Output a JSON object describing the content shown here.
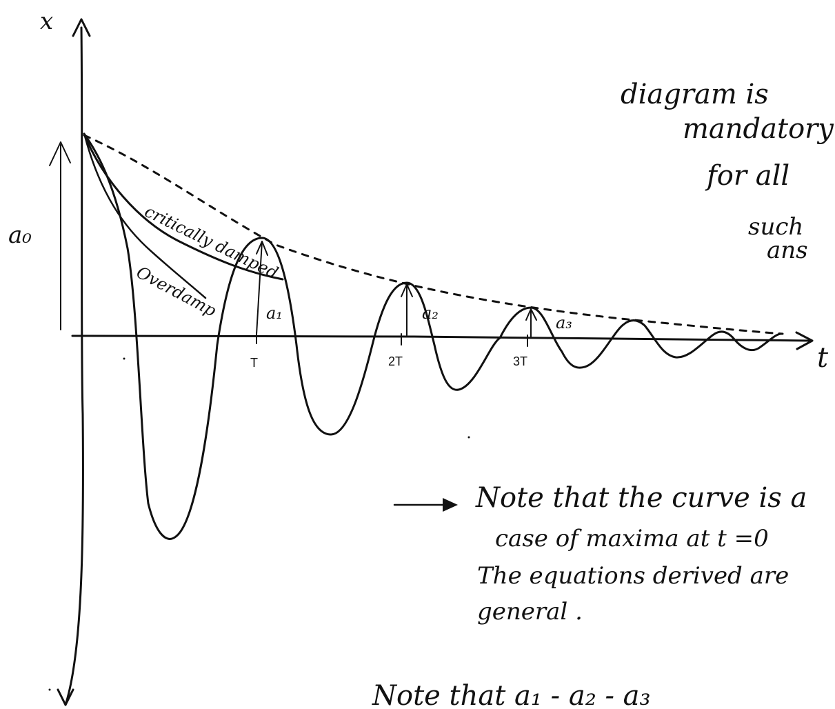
{
  "axes": {
    "x_axis_label": "x",
    "t_axis_label": "t",
    "tick_labels": [
      "T",
      "2T",
      "3T"
    ]
  },
  "amplitudes": {
    "a0": "a₀",
    "a1": "a₁",
    "a2": "a₂",
    "a3": "a₃"
  },
  "curves": {
    "critically_damped": "critically damped",
    "overdamp": "Overdamp"
  },
  "side_note": {
    "lines": [
      "diagram is",
      "mandatory",
      "for all",
      "such",
      "ans"
    ]
  },
  "note": {
    "lines": [
      "Note that the curve is a",
      "case of maxima at t =0",
      "The equations derived are",
      "general ."
    ]
  },
  "bottom_note": "Note that  a₁ -  a₂  -  a₃"
}
